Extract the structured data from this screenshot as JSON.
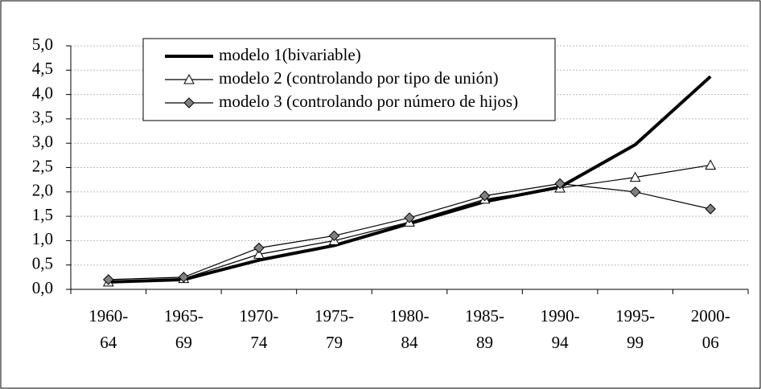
{
  "chart_data": {
    "type": "line",
    "categories": [
      [
        "1960-",
        "64"
      ],
      [
        "1965-",
        "69"
      ],
      [
        "1970-",
        "74"
      ],
      [
        "1975-",
        "79"
      ],
      [
        "1980-",
        "84"
      ],
      [
        "1985-",
        "89"
      ],
      [
        "1990-",
        "94"
      ],
      [
        "1995-",
        "99"
      ],
      [
        "2000-",
        "06"
      ]
    ],
    "series": [
      {
        "name": "modelo 1(bivariable)",
        "color": "#000000",
        "marker": "none",
        "values": [
          0.15,
          0.2,
          0.6,
          0.9,
          1.35,
          1.8,
          2.1,
          2.97,
          4.37
        ]
      },
      {
        "name": "modelo 2 (controlando por tipo de unión)",
        "color": "#000000",
        "marker": "triangle",
        "values": [
          0.15,
          0.22,
          0.72,
          1.0,
          1.38,
          1.85,
          2.08,
          2.3,
          2.55
        ]
      },
      {
        "name": "modelo 3 (controlando por número de hijos)",
        "color": "#000000",
        "marker": "diamond",
        "values": [
          0.2,
          0.25,
          0.85,
          1.1,
          1.47,
          1.92,
          2.17,
          2.0,
          1.65
        ]
      }
    ],
    "ylim": [
      0,
      5
    ],
    "yticks": [
      {
        "value": 0,
        "label": "0,0"
      },
      {
        "value": 0.5,
        "label": "0,5"
      },
      {
        "value": 1,
        "label": "1,0"
      },
      {
        "value": 1.5,
        "label": "1,5"
      },
      {
        "value": 2,
        "label": "2,0"
      },
      {
        "value": 2.5,
        "label": "2,5"
      },
      {
        "value": 3,
        "label": "3,0"
      },
      {
        "value": 3.5,
        "label": "3,5"
      },
      {
        "value": 4,
        "label": "4,0"
      },
      {
        "value": 4.5,
        "label": "4,5"
      },
      {
        "value": 5,
        "label": "5,0"
      }
    ],
    "grid": true
  }
}
